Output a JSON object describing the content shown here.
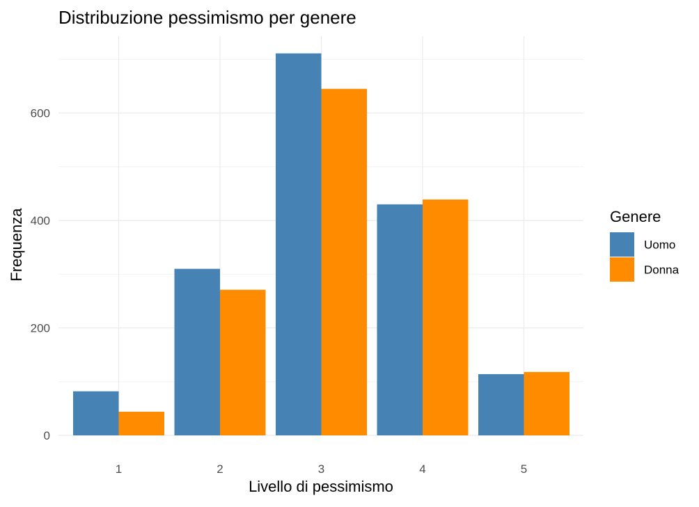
{
  "chart_data": {
    "type": "bar",
    "title": "Distribuzione pessimismo per genere",
    "xlabel": "Livello di pessimismo",
    "ylabel": "Frequenza",
    "categories": [
      "1",
      "2",
      "3",
      "4",
      "5"
    ],
    "series": [
      {
        "name": "Uomo",
        "values": [
          82,
          310,
          711,
          430,
          114
        ]
      },
      {
        "name": "Donna",
        "values": [
          44,
          271,
          645,
          439,
          118
        ]
      }
    ],
    "ylim": [
      0,
      711
    ],
    "yticks": [
      0,
      200,
      400,
      600
    ],
    "grid": true,
    "legend": {
      "title": "Genere",
      "position": "right"
    },
    "colors": {
      "Uomo": "#4682B4",
      "Donna": "#FF8C00"
    }
  }
}
